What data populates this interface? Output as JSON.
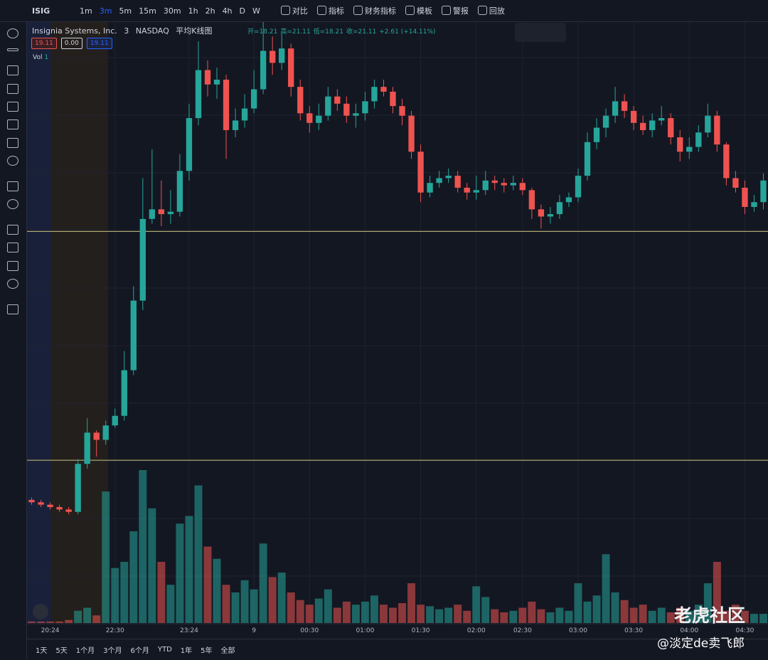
{
  "toolbar": {
    "symbol": "ISIG",
    "intervals": [
      "1m",
      "3m",
      "5m",
      "15m",
      "30m",
      "1h",
      "2h",
      "4h",
      "D",
      "W"
    ],
    "active_interval": "3m",
    "buttons": [
      "对比",
      "指标",
      "财务指标",
      "模板",
      "警报",
      "回放"
    ]
  },
  "legend": {
    "name": "Insignia Systems, Inc.",
    "interval": "3",
    "exchange": "NASDAQ",
    "chart_style": "平均K线图",
    "ohlc": [
      "开=18.21",
      "高=21.11",
      "低=18.21",
      "收=21.11",
      "+2.61 (+14.11%)"
    ],
    "price_boxes": [
      "19.11",
      "0.00",
      "19.11"
    ],
    "volume_label": "Vol",
    "volume_value": "1"
  },
  "bottom_bar": {
    "ranges": [
      "1天",
      "5天",
      "1个月",
      "3个月",
      "6个月",
      "YTD",
      "1年",
      "5年",
      "全部"
    ]
  },
  "watermark": {
    "brand": "老虎社区",
    "author": "@淡定de卖飞郎"
  },
  "chart_data": {
    "type": "candlestick",
    "categories": [
      null,
      null,
      "20:24",
      null,
      null,
      null,
      null,
      null,
      null,
      "22:30",
      null,
      null,
      null,
      null,
      null,
      null,
      null,
      "23:24",
      null,
      null,
      null,
      null,
      null,
      null,
      "9",
      null,
      null,
      null,
      null,
      null,
      "00:30",
      null,
      null,
      null,
      null,
      null,
      "01:00",
      null,
      null,
      null,
      null,
      null,
      "01:30",
      null,
      null,
      null,
      null,
      null,
      "02:00",
      null,
      null,
      null,
      null,
      "02:30",
      null,
      null,
      null,
      null,
      null,
      "03:00",
      null,
      null,
      null,
      null,
      null,
      "03:30",
      null,
      null,
      null,
      null,
      null,
      "04:00",
      null,
      null,
      null,
      null,
      null,
      "04:30",
      null,
      null
    ],
    "open": [
      6.1,
      6.0,
      5.9,
      5.8,
      5.7,
      5.6,
      7.6,
      8.9,
      8.6,
      9.2,
      9.6,
      11.5,
      14.4,
      17.8,
      18.2,
      18.0,
      18.1,
      19.8,
      22.0,
      24.0,
      23.4,
      23.6,
      21.5,
      21.9,
      22.4,
      23.2,
      24.8,
      24.3,
      24.9,
      23.3,
      22.2,
      21.8,
      22.1,
      22.9,
      22.6,
      22.1,
      22.2,
      22.7,
      23.3,
      23.1,
      22.5,
      22.1,
      20.6,
      18.9,
      19.3,
      19.5,
      19.6,
      19.1,
      18.9,
      19.0,
      19.4,
      19.3,
      19.2,
      19.3,
      19.0,
      18.2,
      17.9,
      18.0,
      18.5,
      18.7,
      19.6,
      21.0,
      21.6,
      22.1,
      22.7,
      22.3,
      21.8,
      21.5,
      21.9,
      22.0,
      21.2,
      20.6,
      20.8,
      21.4,
      22.1,
      20.9,
      19.5,
      19.1,
      18.3,
      18.5
    ],
    "high": [
      6.2,
      6.1,
      6.0,
      5.9,
      5.8,
      7.8,
      9.5,
      9.0,
      9.4,
      9.9,
      12.3,
      15.0,
      19.5,
      20.7,
      19.4,
      19.0,
      20.5,
      22.6,
      25.2,
      24.4,
      24.1,
      23.8,
      22.4,
      23.0,
      24.0,
      26.0,
      25.4,
      25.5,
      25.1,
      23.6,
      22.5,
      22.6,
      23.3,
      23.2,
      22.9,
      22.6,
      23.1,
      23.6,
      23.6,
      23.3,
      22.8,
      22.3,
      20.9,
      19.6,
      19.8,
      19.9,
      19.8,
      19.3,
      19.6,
      19.8,
      19.6,
      19.5,
      19.6,
      19.5,
      19.1,
      18.4,
      18.3,
      18.8,
      18.9,
      19.9,
      21.4,
      22.0,
      22.4,
      23.3,
      23.0,
      22.5,
      22.1,
      22.2,
      22.5,
      22.2,
      21.5,
      21.2,
      21.7,
      22.6,
      22.3,
      21.0,
      19.8,
      19.4,
      18.8,
      19.7
    ],
    "low": [
      5.9,
      5.8,
      5.7,
      5.6,
      5.5,
      5.5,
      7.4,
      7.9,
      8.4,
      9.1,
      9.4,
      11.3,
      14.0,
      17.6,
      17.5,
      17.6,
      17.9,
      19.4,
      21.7,
      22.9,
      22.8,
      20.3,
      21.2,
      21.6,
      22.2,
      23.0,
      23.8,
      24.0,
      22.9,
      21.9,
      21.4,
      21.5,
      21.9,
      22.3,
      21.8,
      21.6,
      21.9,
      22.4,
      22.9,
      22.2,
      21.7,
      20.3,
      18.5,
      18.7,
      19.1,
      19.3,
      18.9,
      18.6,
      18.6,
      18.8,
      19.0,
      18.9,
      19.0,
      18.8,
      17.8,
      17.4,
      17.6,
      17.8,
      18.3,
      18.5,
      19.4,
      20.7,
      21.2,
      21.8,
      22.0,
      21.5,
      21.3,
      21.2,
      21.7,
      20.9,
      20.2,
      20.3,
      20.6,
      21.2,
      20.6,
      19.2,
      18.9,
      18.0,
      18.1,
      18.2
    ],
    "close": [
      6.0,
      5.9,
      5.8,
      5.7,
      5.6,
      7.6,
      8.9,
      8.6,
      9.2,
      9.6,
      11.5,
      14.4,
      17.8,
      18.2,
      18.0,
      18.1,
      19.8,
      22.0,
      24.0,
      23.4,
      23.6,
      21.5,
      21.9,
      22.4,
      23.2,
      24.8,
      24.3,
      24.9,
      23.3,
      22.2,
      21.8,
      22.1,
      22.9,
      22.6,
      22.1,
      22.2,
      22.7,
      23.3,
      23.1,
      22.5,
      22.1,
      20.6,
      18.9,
      19.3,
      19.5,
      19.6,
      19.1,
      18.9,
      19.0,
      19.4,
      19.3,
      19.2,
      19.3,
      19.0,
      18.2,
      17.9,
      18.0,
      18.5,
      18.7,
      19.6,
      21.0,
      21.6,
      22.1,
      22.7,
      22.3,
      21.8,
      21.5,
      21.9,
      22.0,
      21.2,
      20.6,
      20.8,
      21.4,
      22.1,
      20.9,
      19.5,
      19.1,
      18.3,
      18.5,
      19.4
    ],
    "volume": [
      1,
      1,
      1,
      1,
      2,
      8,
      10,
      5,
      86,
      36,
      40,
      60,
      100,
      75,
      40,
      25,
      65,
      70,
      90,
      50,
      42,
      25,
      20,
      28,
      22,
      52,
      30,
      33,
      20,
      15,
      12,
      16,
      22,
      10,
      14,
      12,
      14,
      18,
      12,
      10,
      13,
      26,
      12,
      11,
      9,
      10,
      12,
      8,
      24,
      17,
      9,
      7,
      8,
      10,
      14,
      9,
      7,
      10,
      8,
      26,
      14,
      18,
      45,
      20,
      15,
      10,
      12,
      8,
      10,
      7,
      10,
      8,
      12,
      26,
      40,
      8,
      12,
      8,
      6,
      6
    ],
    "ylim": [
      5,
      26
    ],
    "volume_lim": [
      0,
      100
    ],
    "hlines": [
      17.28,
      7.75
    ],
    "hline_color": "#c9c27a",
    "up_color": "#26a69a",
    "down_color": "#ef5350"
  }
}
